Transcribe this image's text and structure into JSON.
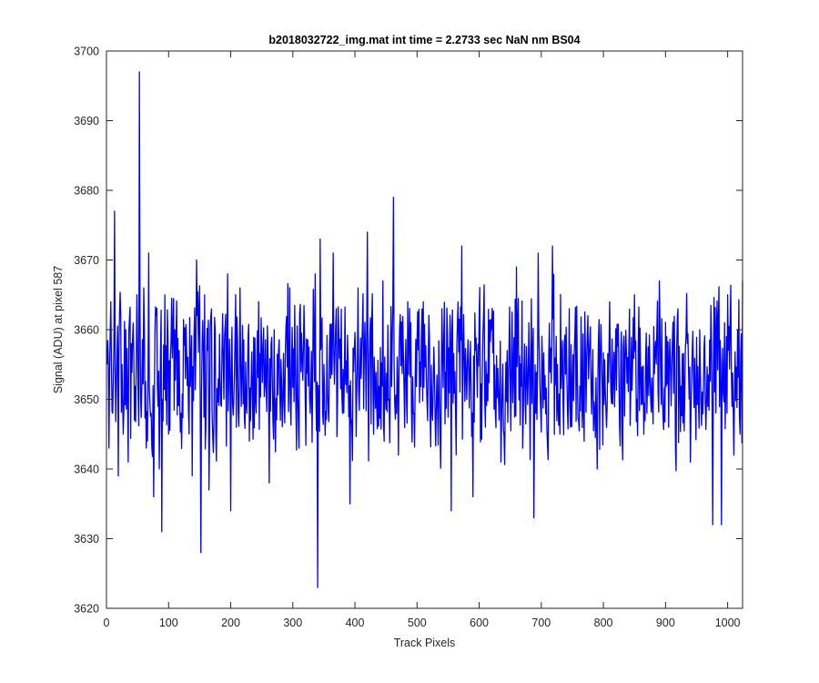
{
  "chart_data": {
    "type": "line",
    "title": "b2018032722_img.mat int time = 2.2733 sec  NaN nm BS04",
    "xlabel": "Track Pixels",
    "ylabel": "Signal (ADU) at pixel 587",
    "xlim": [
      0,
      1024
    ],
    "ylim": [
      3620,
      3700
    ],
    "xticks": [
      0,
      100,
      200,
      300,
      400,
      500,
      600,
      700,
      800,
      900,
      1000
    ],
    "yticks": [
      3620,
      3630,
      3640,
      3650,
      3660,
      3670,
      3680,
      3690,
      3700
    ],
    "xtick_labels": [
      "0",
      "100",
      "200",
      "300",
      "400",
      "500",
      "600",
      "700",
      "800",
      "900",
      "1000"
    ],
    "ytick_labels": [
      "3620",
      "3630",
      "3640",
      "3650",
      "3660",
      "3670",
      "3680",
      "3690",
      "3700"
    ],
    "grid": false,
    "box": true,
    "series_color": "#0000ff",
    "series": [
      {
        "key_points": [
          [
            1,
            3655
          ],
          [
            4,
            3643
          ],
          [
            7,
            3664
          ],
          [
            10,
            3648
          ],
          [
            13,
            3677
          ],
          [
            16,
            3652
          ],
          [
            19,
            3639
          ],
          [
            23,
            3662
          ],
          [
            27,
            3645
          ],
          [
            31,
            3660
          ],
          [
            35,
            3641
          ],
          [
            40,
            3658
          ],
          [
            45,
            3647
          ],
          [
            49,
            3665
          ],
          [
            53,
            3697
          ],
          [
            55,
            3650
          ],
          [
            60,
            3666
          ],
          [
            64,
            3643
          ],
          [
            68,
            3671
          ],
          [
            72,
            3648
          ],
          [
            76,
            3636
          ],
          [
            80,
            3662
          ],
          [
            85,
            3640
          ],
          [
            89,
            3631
          ],
          [
            94,
            3665
          ],
          [
            100,
            3645
          ],
          [
            110,
            3660
          ],
          [
            120,
            3648
          ],
          [
            130,
            3652
          ],
          [
            138,
            3639
          ],
          [
            145,
            3670
          ],
          [
            152,
            3628
          ],
          [
            158,
            3665
          ],
          [
            165,
            3637
          ],
          [
            175,
            3660
          ],
          [
            185,
            3649
          ],
          [
            195,
            3668
          ],
          [
            200,
            3634
          ],
          [
            205,
            3650
          ],
          [
            215,
            3666
          ],
          [
            230,
            3644
          ],
          [
            245,
            3664
          ],
          [
            255,
            3652
          ],
          [
            262,
            3638
          ],
          [
            270,
            3660
          ],
          [
            280,
            3647
          ],
          [
            295,
            3666
          ],
          [
            310,
            3643
          ],
          [
            320,
            3650
          ],
          [
            328,
            3648
          ],
          [
            336,
            3668
          ],
          [
            340,
            3623
          ],
          [
            344,
            3673
          ],
          [
            350,
            3655
          ],
          [
            365,
            3671
          ],
          [
            380,
            3648
          ],
          [
            392,
            3635
          ],
          [
            405,
            3666
          ],
          [
            415,
            3656
          ],
          [
            420,
            3674
          ],
          [
            430,
            3645
          ],
          [
            445,
            3667
          ],
          [
            455,
            3650
          ],
          [
            462,
            3679
          ],
          [
            470,
            3642
          ],
          [
            485,
            3664
          ],
          [
            495,
            3648
          ],
          [
            510,
            3664
          ],
          [
            525,
            3647
          ],
          [
            540,
            3663
          ],
          [
            555,
            3634
          ],
          [
            565,
            3661
          ],
          [
            572,
            3672
          ],
          [
            580,
            3650
          ],
          [
            590,
            3636
          ],
          [
            600,
            3662
          ],
          [
            610,
            3646
          ],
          [
            620,
            3660
          ],
          [
            635,
            3641
          ],
          [
            645,
            3657
          ],
          [
            660,
            3669
          ],
          [
            670,
            3643
          ],
          [
            680,
            3661
          ],
          [
            688,
            3633
          ],
          [
            695,
            3671
          ],
          [
            705,
            3650
          ],
          [
            718,
            3672
          ],
          [
            730,
            3645
          ],
          [
            745,
            3663
          ],
          [
            760,
            3647
          ],
          [
            775,
            3662
          ],
          [
            790,
            3640
          ],
          [
            810,
            3664
          ],
          [
            830,
            3645
          ],
          [
            850,
            3665
          ],
          [
            870,
            3648
          ],
          [
            890,
            3667
          ],
          [
            905,
            3646
          ],
          [
            920,
            3663
          ],
          [
            940,
            3641
          ],
          [
            955,
            3660
          ],
          [
            968,
            3649
          ],
          [
            976,
            3632
          ],
          [
            982,
            3660
          ],
          [
            990,
            3632
          ],
          [
            1000,
            3665
          ],
          [
            1010,
            3642
          ],
          [
            1016,
            3660
          ],
          [
            1020,
            3645
          ],
          [
            1024,
            3667
          ]
        ]
      }
    ]
  }
}
